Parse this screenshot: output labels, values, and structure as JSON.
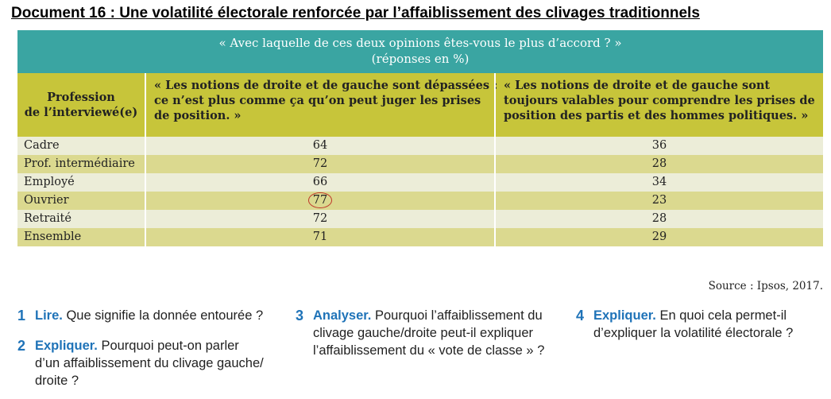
{
  "doc_title": "Document 16 : Une volatilité électorale renforcée par l’affaiblissement des clivages traditionnels",
  "table": {
    "banner_line1": "« Avec laquelle de ces deux opinions êtes-vous le plus d’accord ? »",
    "banner_line2": "(réponses en %)",
    "col1_lines": [
      "Profession",
      "de l’interviewé(e)"
    ],
    "col2_lines": [
      "« Les notions de droite et de gauche sont dépassées :",
      "ce n’est plus comme ça qu’on peut juger les prises",
      "de position. »"
    ],
    "col3_lines": [
      "« Les notions de droite et de gauche sont",
      "toujours valables pour comprendre les prises de",
      "position des partis et des hommes politiques. »"
    ],
    "rows": [
      {
        "profession": "Cadre",
        "depassees": "64",
        "valables": "36"
      },
      {
        "profession": "Prof. intermédiaire",
        "depassees": "72",
        "valables": "28"
      },
      {
        "profession": "Employé",
        "depassees": "66",
        "valables": "34"
      },
      {
        "profession": "Ouvrier",
        "depassees": "77",
        "valables": "23"
      },
      {
        "profession": "Retraité",
        "depassees": "72",
        "valables": "28"
      },
      {
        "profession": "Ensemble",
        "depassees": "71",
        "valables": "29"
      }
    ]
  },
  "source": "Source : Ipsos, 2017.",
  "questions": {
    "q1": {
      "num": "1",
      "keyword": "Lire.",
      "lines": [
        " Que signifie la donnée entourée ?"
      ]
    },
    "q2": {
      "num": "2",
      "keyword": "Expliquer.",
      "lines": [
        " Pourquoi peut-on parler",
        "d’un affaiblissement du clivage gauche/",
        "droite ?"
      ]
    },
    "q3": {
      "num": "3",
      "keyword": "Analyser.",
      "lines": [
        " Pourquoi l’affaiblissement du",
        "clivage gauche/droite peut-il expliquer",
        "l’affaiblissement du « vote de classe » ?"
      ]
    },
    "q4": {
      "num": "4",
      "keyword": "Expliquer.",
      "lines": " En quoi cela permet-il|d’expliquer la volatilité électorale ?"
    }
  }
}
